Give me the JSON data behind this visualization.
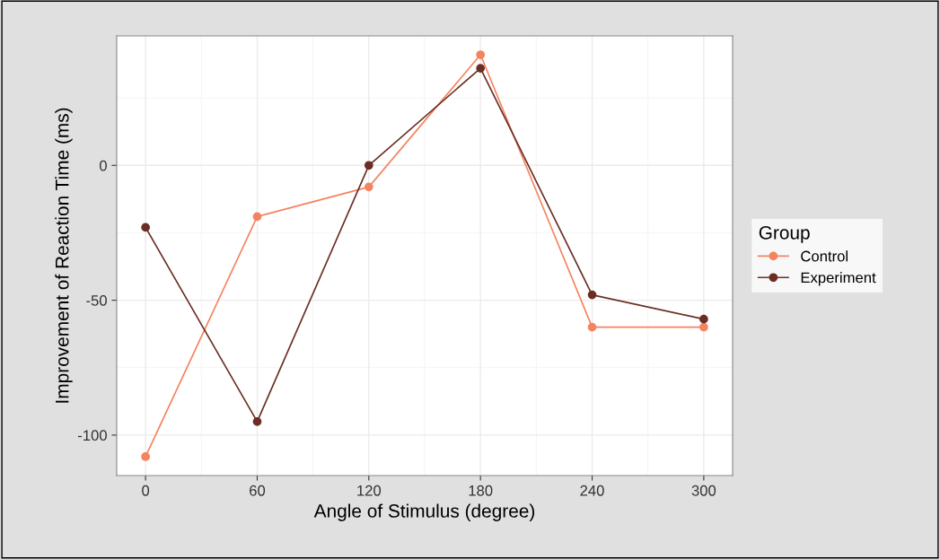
{
  "chart_data": {
    "type": "line",
    "xlabel": "Angle of Stimulus (degree)",
    "ylabel": "Improvement of Reaction Time (ms)",
    "legend_title": "Group",
    "x": [
      0,
      60,
      120,
      180,
      240,
      300
    ],
    "series": [
      {
        "name": "Control",
        "color": "#f4845f",
        "values": [
          -108,
          -19,
          -8,
          41,
          -60,
          -60
        ]
      },
      {
        "name": "Experiment",
        "color": "#6b2e24",
        "values": [
          -23,
          -95,
          0,
          36,
          -48,
          -57
        ]
      }
    ],
    "xlim": [
      -15.5,
      315.5
    ],
    "xticks": [
      0,
      60,
      120,
      180,
      240,
      300
    ],
    "ylim": [
      -115,
      48
    ],
    "yticks": [
      -100,
      -50,
      0
    ],
    "grid": true,
    "legend": "right",
    "marker": "circle",
    "line_style": "solid"
  }
}
